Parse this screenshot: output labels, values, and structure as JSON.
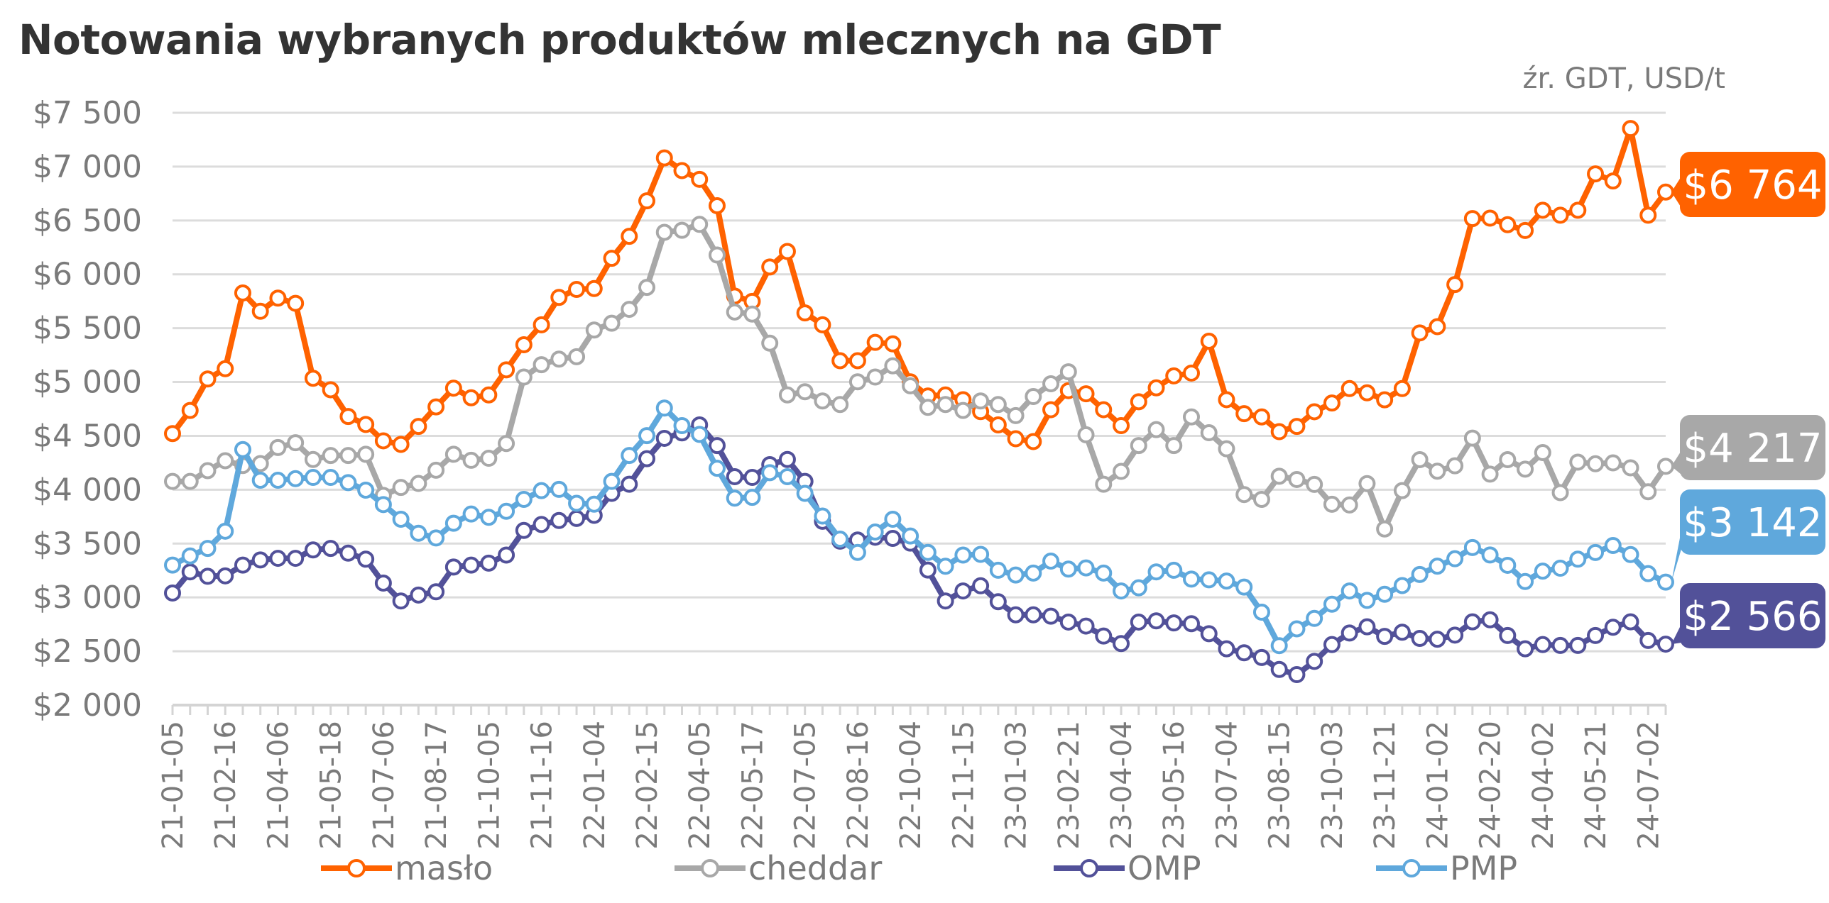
{
  "title": "Notowania wybranych produktów mlecznych na GDT",
  "source": "źr. GDT, USD/t",
  "chart_data": {
    "type": "line",
    "title": "Notowania wybranych produktów mlecznych na GDT",
    "xlabel": "",
    "ylabel": "USD/t",
    "ylim": [
      2000,
      7500
    ],
    "ystep": 500,
    "grid": true,
    "legend_position": "bottom",
    "y_tick_labels": [
      "$2 000",
      "$2 500",
      "$3 000",
      "$3 500",
      "$4 000",
      "$4 500",
      "$5 000",
      "$5 500",
      "$6 000",
      "$6 500",
      "$7 000",
      "$7 500"
    ],
    "x_tick_every": 3,
    "x_tick_labels": [
      "21-01-05",
      "21-02-16",
      "21-04-06",
      "21-05-18",
      "21-07-06",
      "21-08-17",
      "21-10-05",
      "21-11-16",
      "22-01-04",
      "22-02-15",
      "22-04-05",
      "22-05-17",
      "22-07-05",
      "22-08-16",
      "22-10-04",
      "22-11-15",
      "23-01-03",
      "23-02-21",
      "23-04-04",
      "23-05-16",
      "23-07-04",
      "23-08-15",
      "23-10-03",
      "23-11-21",
      "24-01-02",
      "24-02-20",
      "24-04-02",
      "24-05-21",
      "24-07-02"
    ],
    "series": [
      {
        "name": "masło",
        "color": "#FF6200",
        "last_label": "$6 764",
        "values": [
          4521,
          4736,
          5028,
          5124,
          5827,
          5657,
          5779,
          5731,
          5035,
          4928,
          4680,
          4606,
          4454,
          4421,
          4588,
          4769,
          4943,
          4854,
          4880,
          5113,
          5346,
          5531,
          5786,
          5860,
          5868,
          6149,
          6353,
          6682,
          7081,
          6963,
          6882,
          6637,
          5798,
          5749,
          6068,
          6212,
          5642,
          5531,
          5198,
          5198,
          5368,
          5354,
          5002,
          4870,
          4880,
          4836,
          4725,
          4602,
          4473,
          4447,
          4743,
          4920,
          4891,
          4743,
          4595,
          4817,
          4946,
          5057,
          5083,
          5379,
          4836,
          4706,
          4676,
          4539,
          4588,
          4724,
          4805,
          4939,
          4900,
          4835,
          4939,
          5456,
          5514,
          5905,
          6518,
          6522,
          6461,
          6407,
          6595,
          6549,
          6595,
          6933,
          6867,
          7354,
          6549,
          6764
        ]
      },
      {
        "name": "cheddar",
        "color": "#A8A8A8",
        "last_label": "$4 217",
        "values": [
          4077,
          4077,
          4177,
          4269,
          4225,
          4243,
          4392,
          4436,
          4281,
          4318,
          4318,
          4329,
          3947,
          4021,
          4058,
          4181,
          4329,
          4273,
          4292,
          4429,
          5046,
          5161,
          5213,
          5235,
          5483,
          5546,
          5675,
          5879,
          6390,
          6409,
          6464,
          6179,
          5650,
          5631,
          5361,
          4880,
          4910,
          4824,
          4791,
          5002,
          5046,
          5150,
          4965,
          4765,
          4791,
          4736,
          4824,
          4791,
          4688,
          4865,
          4984,
          5095,
          4510,
          4051,
          4170,
          4410,
          4558,
          4410,
          4676,
          4529,
          4380,
          3955,
          3910,
          4125,
          4095,
          4049,
          3865,
          3858,
          4057,
          3635,
          3992,
          4279,
          4172,
          4222,
          4479,
          4145,
          4279,
          4191,
          4345,
          3973,
          4256,
          4241,
          4249,
          4203,
          3981,
          4217
        ]
      },
      {
        "name": "OMP",
        "color": "#525199",
        "last_label": "$2 566",
        "values": [
          3041,
          3237,
          3196,
          3200,
          3300,
          3348,
          3363,
          3363,
          3441,
          3455,
          3411,
          3355,
          3133,
          2967,
          3022,
          3052,
          3282,
          3300,
          3318,
          3393,
          3622,
          3677,
          3714,
          3733,
          3762,
          3966,
          4051,
          4288,
          4477,
          4528,
          4602,
          4410,
          4121,
          4114,
          4233,
          4281,
          4077,
          3707,
          3522,
          3533,
          3559,
          3548,
          3504,
          3254,
          2967,
          3060,
          3108,
          2960,
          2838,
          2838,
          2826,
          2771,
          2734,
          2641,
          2571,
          2771,
          2782,
          2763,
          2756,
          2663,
          2523,
          2486,
          2442,
          2331,
          2283,
          2406,
          2562,
          2669,
          2727,
          2638,
          2677,
          2619,
          2612,
          2650,
          2773,
          2792,
          2646,
          2523,
          2562,
          2554,
          2554,
          2646,
          2723,
          2773,
          2600,
          2566
        ]
      },
      {
        "name": "PMP",
        "color": "#5FA8DC",
        "last_label": "$3 142",
        "values": [
          3300,
          3385,
          3455,
          3615,
          4373,
          4088,
          4088,
          4103,
          4114,
          4114,
          4066,
          3996,
          3862,
          3726,
          3596,
          3552,
          3689,
          3774,
          3744,
          3800,
          3910,
          3992,
          4003,
          3874,
          3866,
          4077,
          4318,
          4502,
          4758,
          4595,
          4514,
          4199,
          3922,
          3929,
          4158,
          4121,
          3966,
          3755,
          3541,
          3418,
          3607,
          3726,
          3570,
          3418,
          3289,
          3393,
          3400,
          3252,
          3208,
          3226,
          3337,
          3263,
          3274,
          3226,
          3060,
          3089,
          3237,
          3252,
          3170,
          3163,
          3152,
          3096,
          2863,
          2552,
          2708,
          2805,
          2937,
          3060,
          2972,
          3029,
          3110,
          3213,
          3290,
          3359,
          3463,
          3394,
          3298,
          3148,
          3244,
          3271,
          3355,
          3417,
          3482,
          3398,
          3221,
          3142
        ]
      }
    ]
  }
}
